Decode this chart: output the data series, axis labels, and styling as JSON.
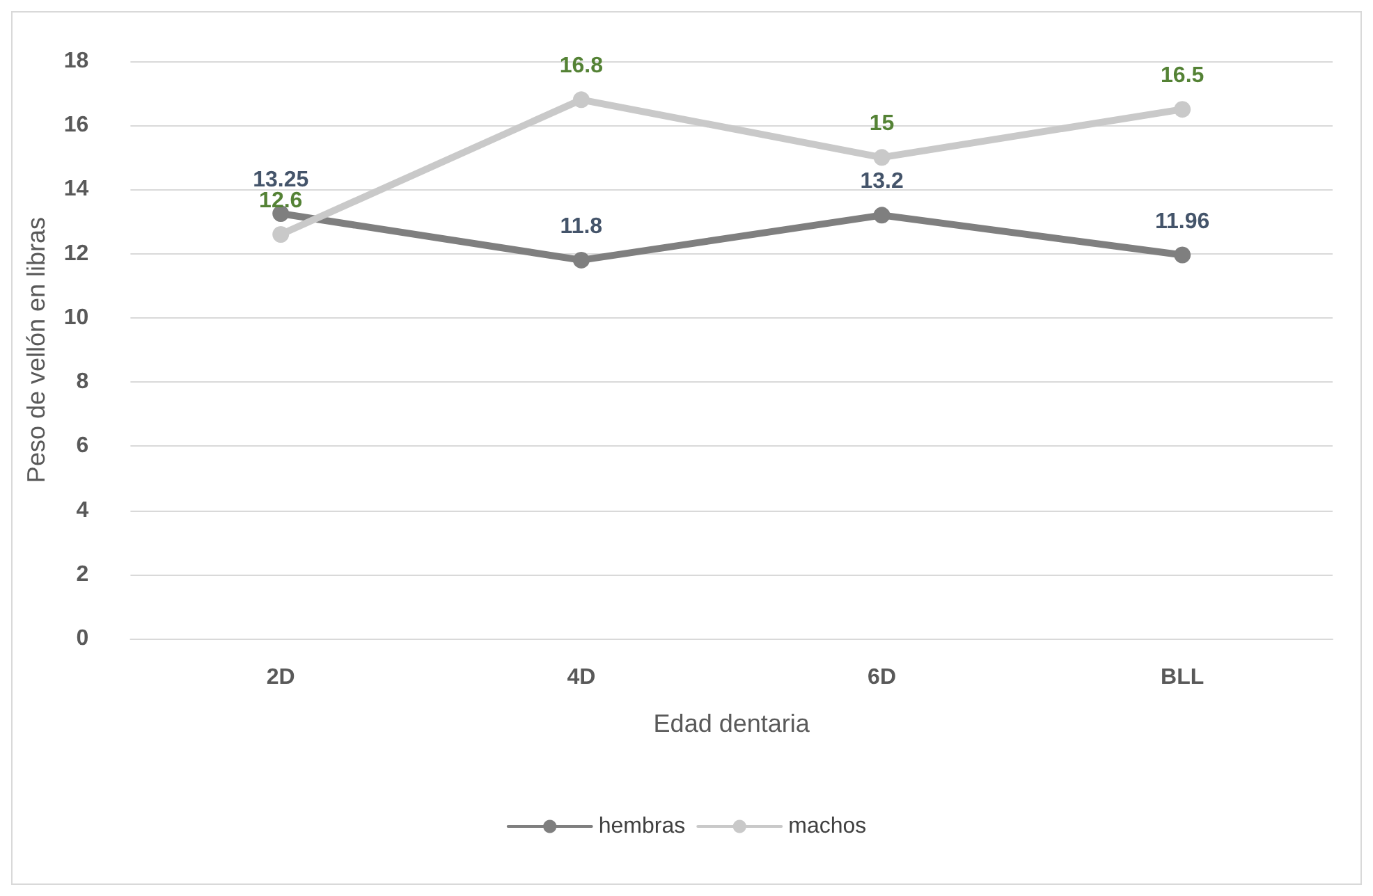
{
  "chart_data": {
    "type": "line",
    "xlabel": "Edad dentaria",
    "ylabel": "Peso de vellón en libras",
    "categories": [
      "2D",
      "4D",
      "6D",
      "BLL"
    ],
    "series": [
      {
        "name": "hembras",
        "color": "#7f7f7f",
        "values": [
          13.25,
          11.8,
          13.2,
          11.96
        ]
      },
      {
        "name": "machos",
        "color": "#c9c9c9",
        "values": [
          12.6,
          16.8,
          15,
          16.5
        ]
      }
    ],
    "ylim": [
      0,
      18
    ],
    "yticks": [
      0,
      2,
      4,
      6,
      8,
      10,
      12,
      14,
      16,
      18
    ],
    "grid": "y",
    "legend": "bottom",
    "marker": "circle",
    "line_style": "solid",
    "data_labels": true
  }
}
